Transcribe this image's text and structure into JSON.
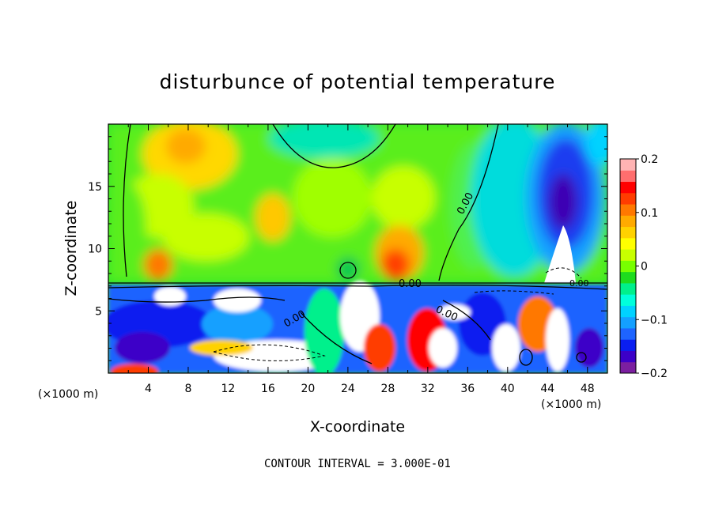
{
  "chart_data": {
    "type": "heatmap",
    "title": "disturbunce of potential temperature",
    "xlabel": "X-coordinate",
    "ylabel": "Z-coordinate",
    "x_unit": "(×1000 m)",
    "x_unit_right": "(×1000 m)",
    "xlim": [
      0,
      50
    ],
    "ylim": [
      0,
      20
    ],
    "x_ticks": [
      "4",
      "8",
      "12",
      "16",
      "20",
      "24",
      "28",
      "32",
      "36",
      "40",
      "44",
      "48"
    ],
    "y_ticks": [
      "5",
      "10",
      "15"
    ],
    "colorbar": {
      "range": [
        -0.2,
        0.2
      ],
      "tick_labels": [
        "0.2",
        "0.1",
        "0",
        "−0.1",
        "−0.2"
      ],
      "colors": [
        "#7b1fa0",
        "#3c00c8",
        "#0a1ef0",
        "#1e64ff",
        "#14a0ff",
        "#00d2ff",
        "#00ffdc",
        "#00f08c",
        "#1edc1e",
        "#78ff00",
        "#c8ff00",
        "#ffff00",
        "#ffd200",
        "#ffaa00",
        "#ff7800",
        "#ff3c00",
        "#ff0000",
        "#ff6e6e",
        "#ffb4b4"
      ]
    },
    "contour_labels": [
      "0.00",
      "0.00",
      "0.00",
      "0.00",
      "0.00"
    ],
    "footer": "CONTOUR INTERVAL = 3.000E-01"
  }
}
